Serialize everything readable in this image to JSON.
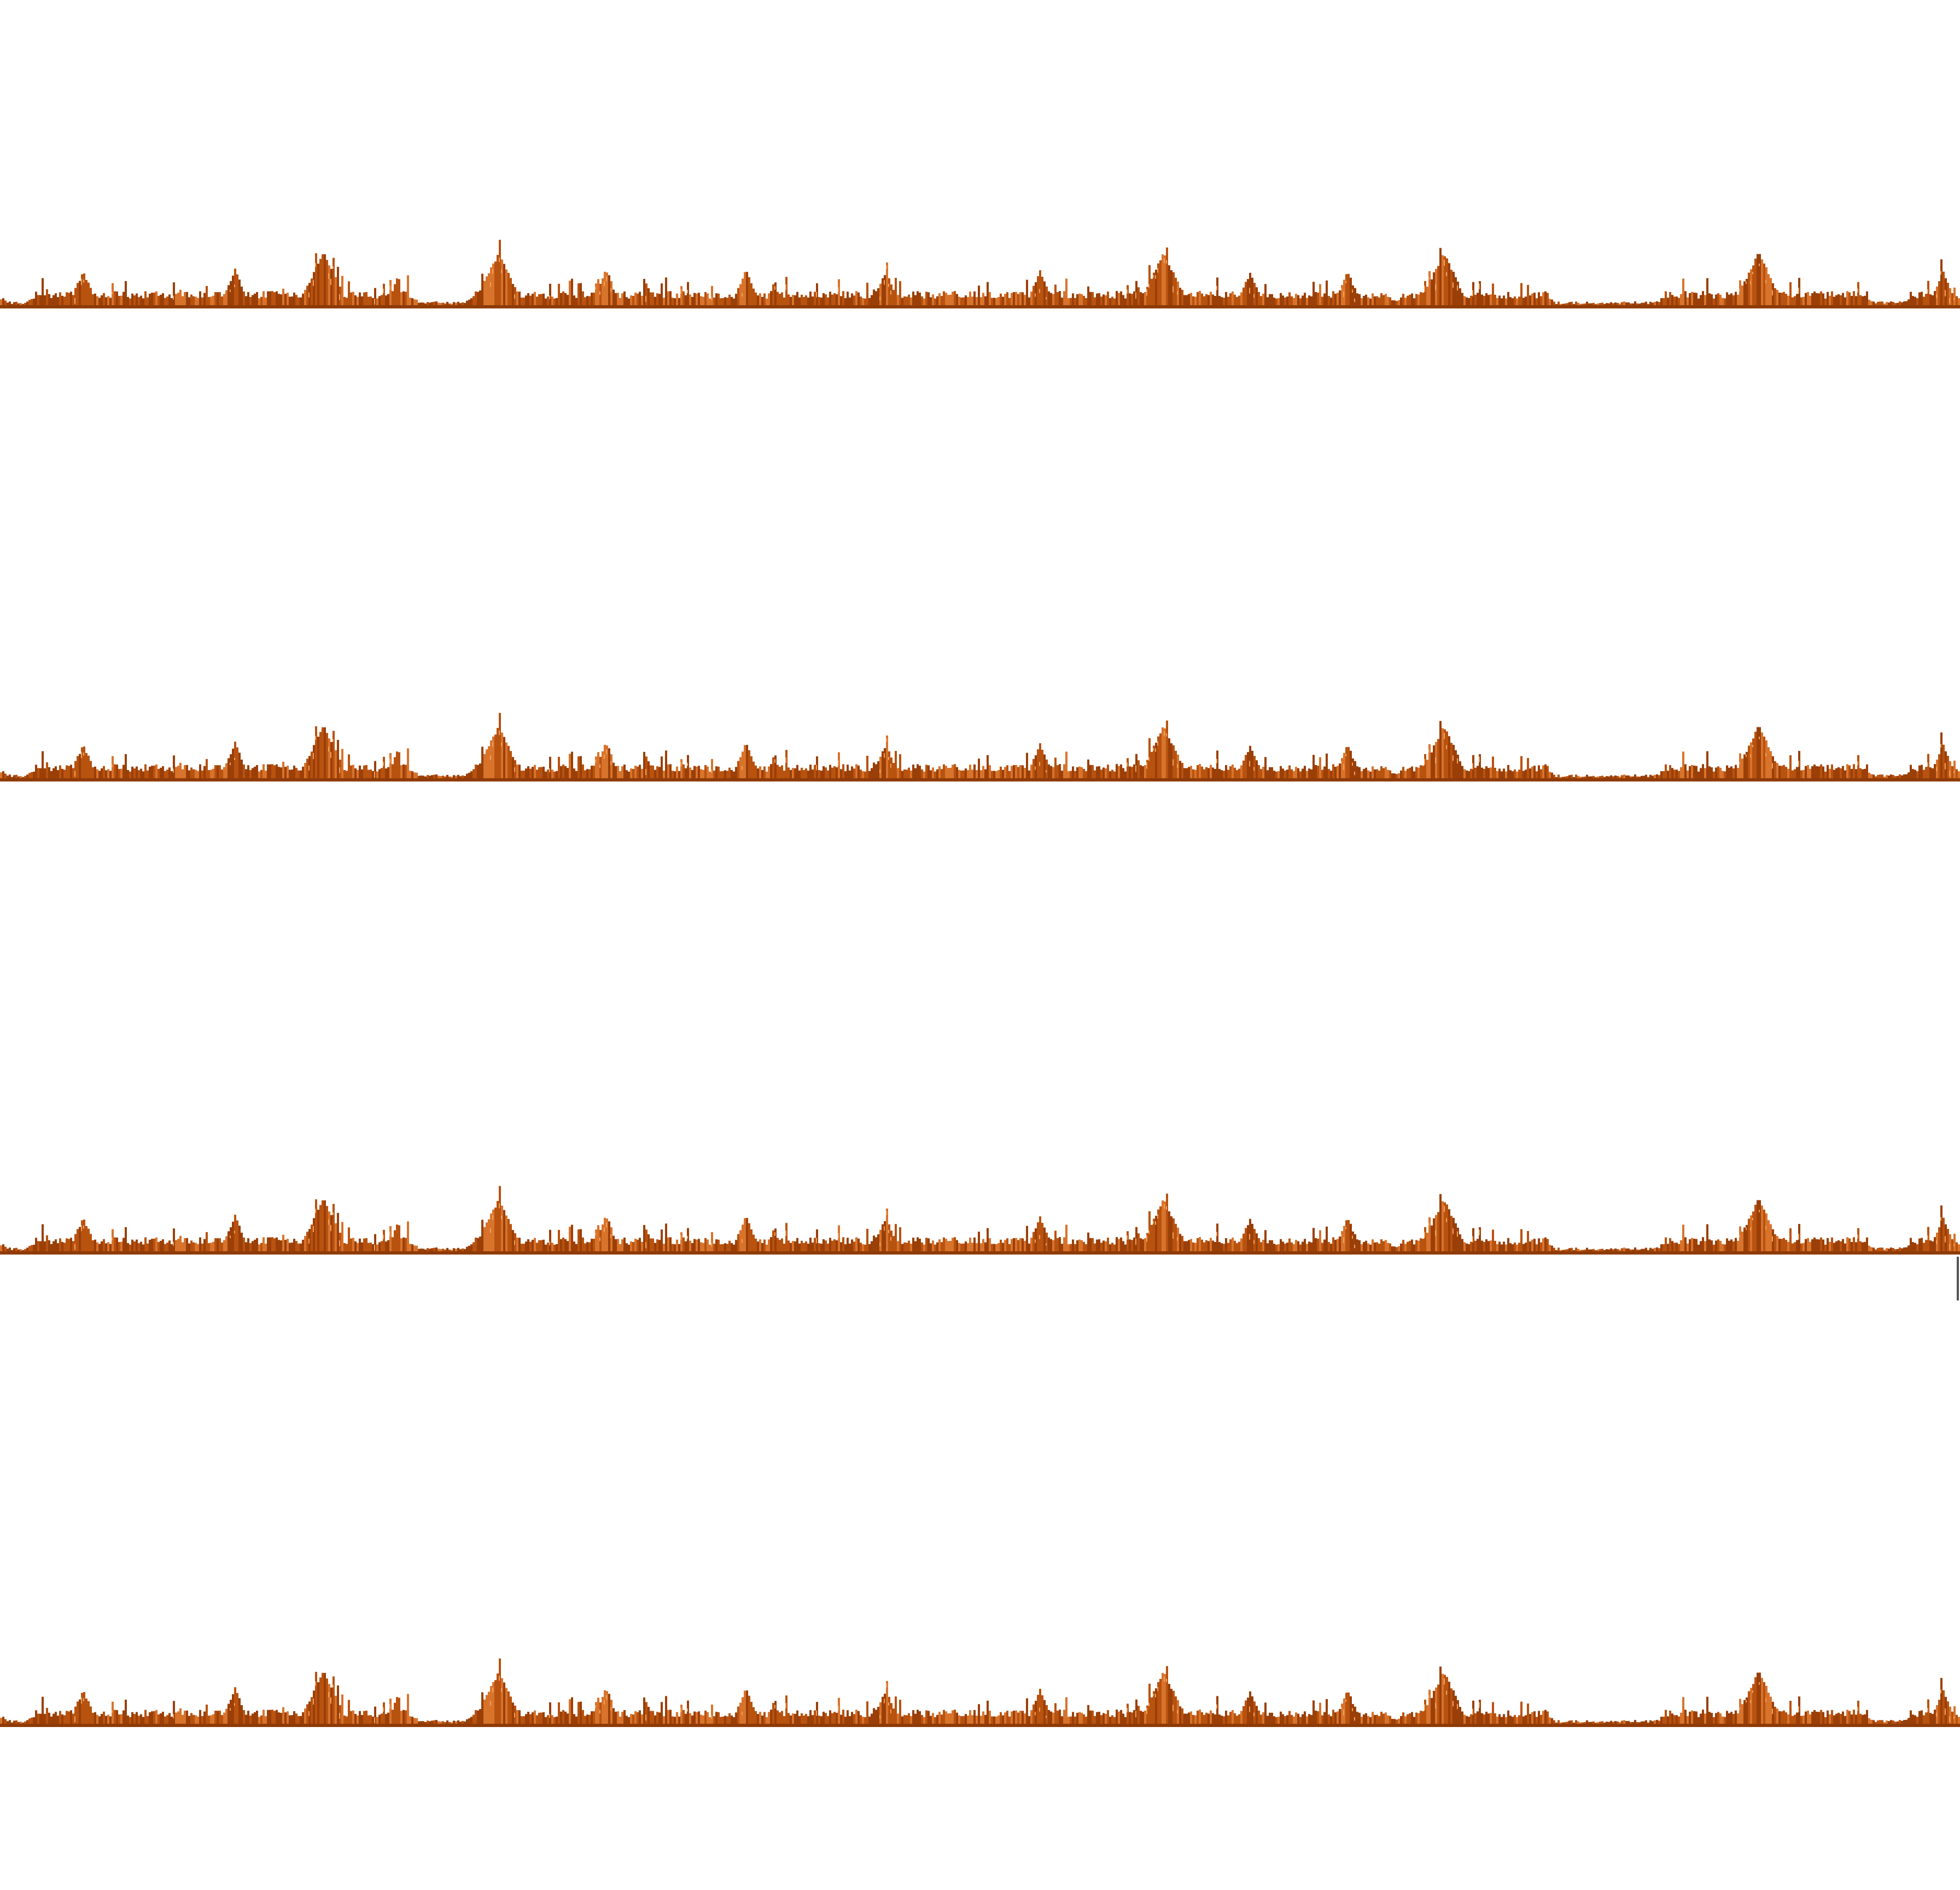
{
  "canvas": {
    "background": "#ffffff"
  },
  "palette": {
    "base_dark": "#9a3f08",
    "mid": "#b8520f",
    "bright": "#d8732c",
    "highlight": "#f0a15a",
    "baseline": "#8f3b07"
  },
  "strips": [
    {
      "id": "strip-1"
    },
    {
      "id": "strip-2"
    },
    {
      "id": "strip-3"
    },
    {
      "id": "strip-4"
    }
  ],
  "cursor": {
    "icon": "text-cursor-icon"
  }
}
